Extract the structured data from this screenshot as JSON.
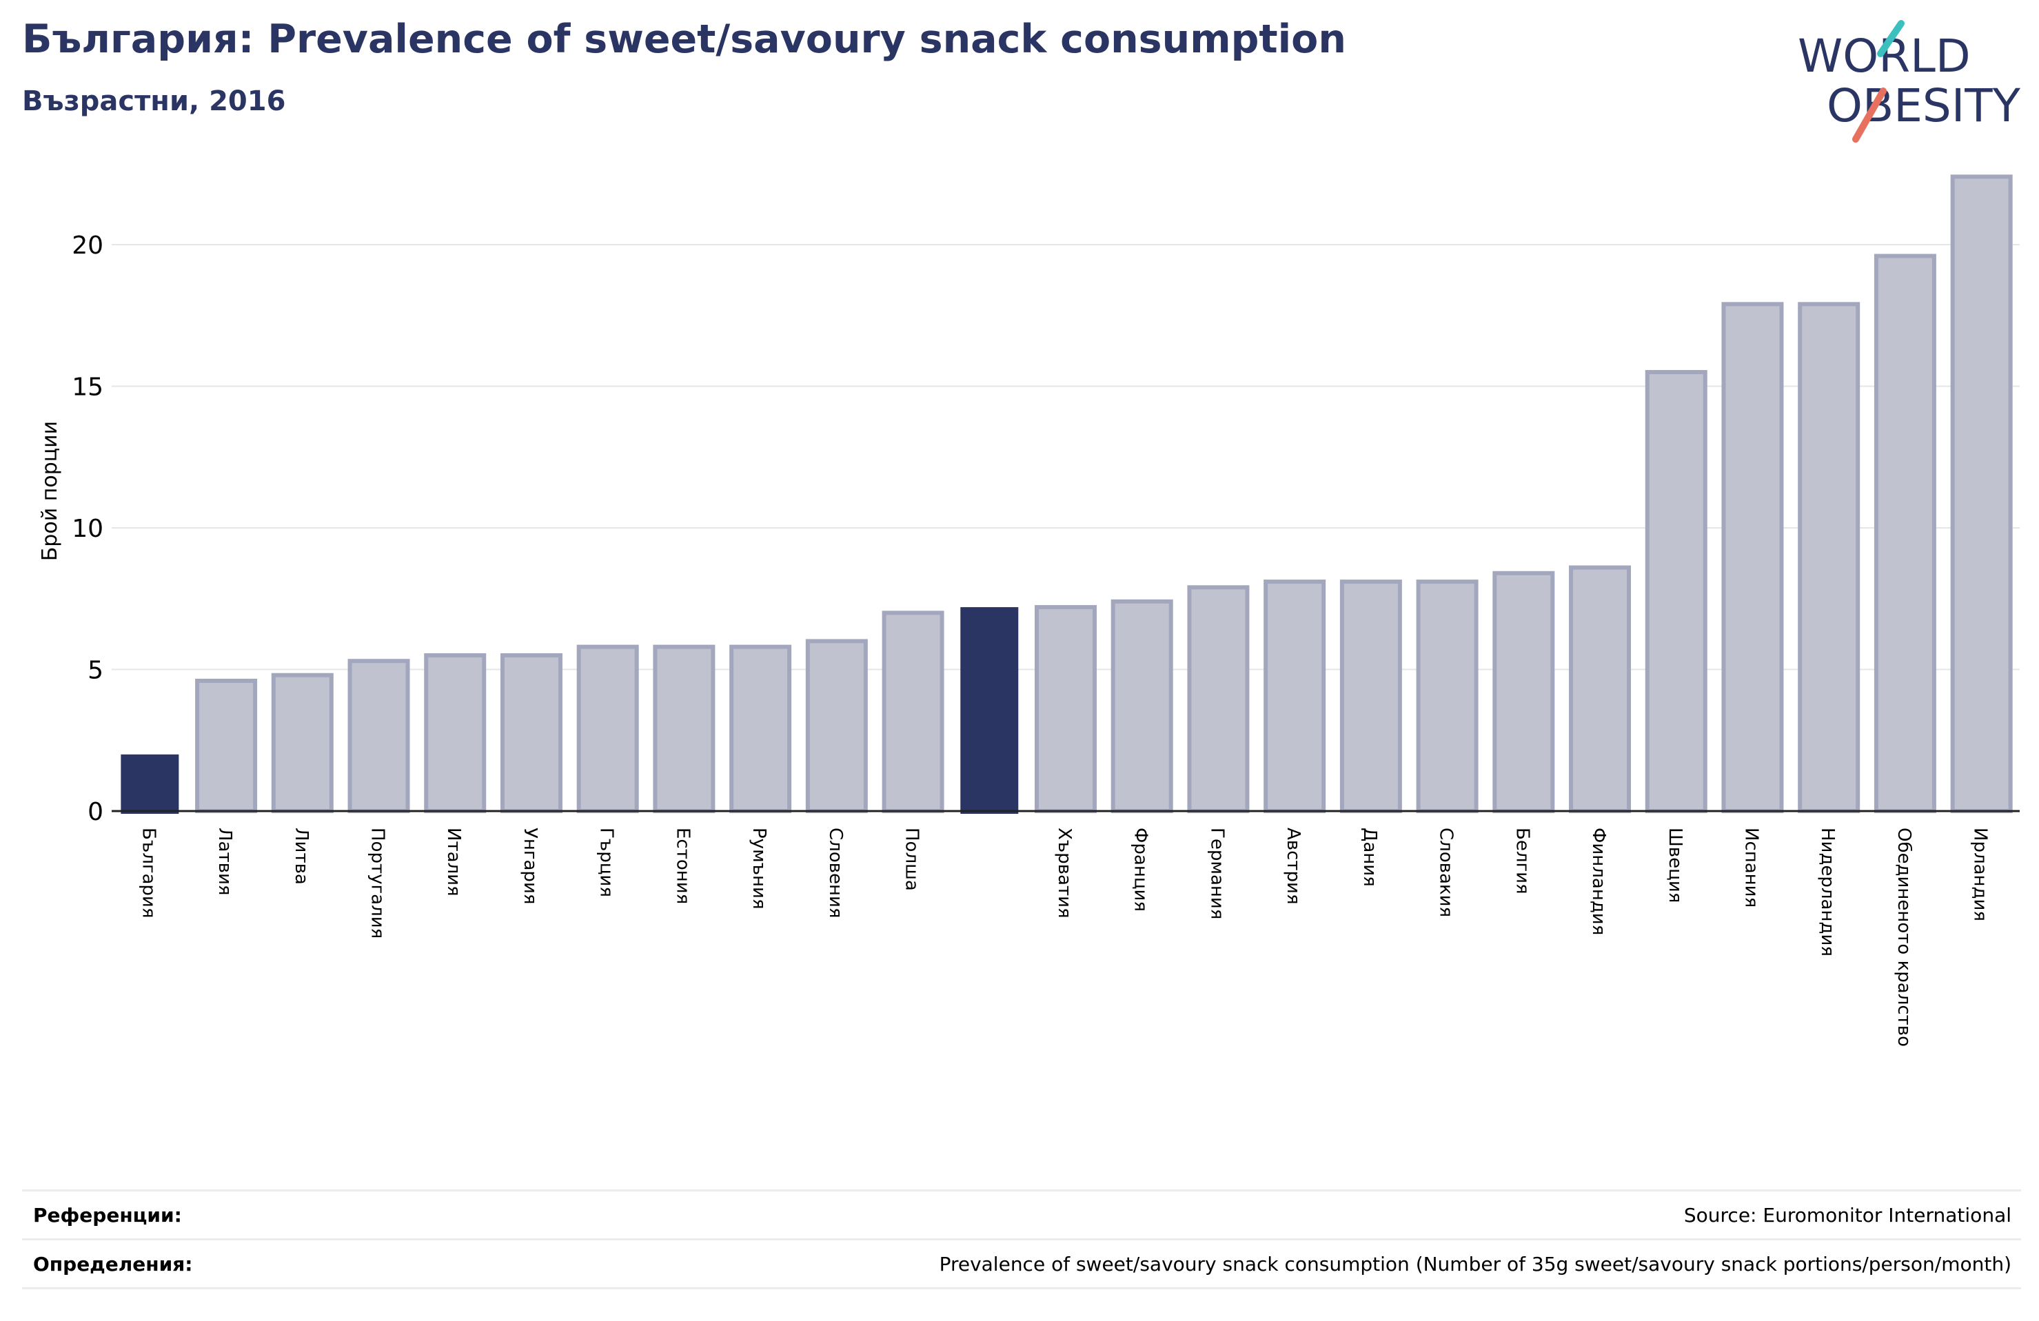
{
  "header": {
    "title": "България: Prevalence of sweet/savoury snack consumption",
    "subtitle": "Възрастни, 2016"
  },
  "logo": {
    "line1": "WORLD",
    "line2": "OBESITY"
  },
  "colors": {
    "primary": "#2b3563",
    "bar_fill": "#c0c2cf",
    "bar_stroke": "#a3a7bd",
    "accent_teal": "#3bbfbf",
    "accent_red": "#e8705f",
    "grid": "#e6e6e6"
  },
  "chart_data": {
    "type": "bar",
    "ylabel": "Брой порции",
    "xlabel": "",
    "ylim": [
      0,
      23
    ],
    "yticks": [
      0,
      5,
      10,
      15,
      20
    ],
    "grid": true,
    "categories": [
      "България",
      "Латвия",
      "Литва",
      "Португалия",
      "Италия",
      "Унгария",
      "Гърция",
      "Естония",
      "Румъния",
      "Словения",
      "Полша",
      "",
      "Хърватия",
      "Франция",
      "Германия",
      "Австрия",
      "Дания",
      "Словакия",
      "Белгия",
      "Финландия",
      "Швеция",
      "Испания",
      "Нидерландия",
      "Обединеното кралство",
      "Ирландия"
    ],
    "values": [
      2.0,
      4.6,
      4.8,
      5.3,
      5.5,
      5.5,
      5.8,
      5.8,
      5.8,
      6.0,
      7.0,
      7.2,
      7.2,
      7.4,
      7.9,
      8.1,
      8.1,
      8.1,
      8.4,
      8.6,
      15.5,
      17.9,
      17.9,
      19.6,
      22.4
    ],
    "highlight": [
      0,
      11
    ]
  },
  "footer": {
    "references_label": "Референции:",
    "references_value": "Source: Euromonitor International",
    "definitions_label": "Определения:",
    "definitions_value": "Prevalence of sweet/savoury snack consumption (Number of 35g sweet/savoury snack portions/person/month)"
  }
}
